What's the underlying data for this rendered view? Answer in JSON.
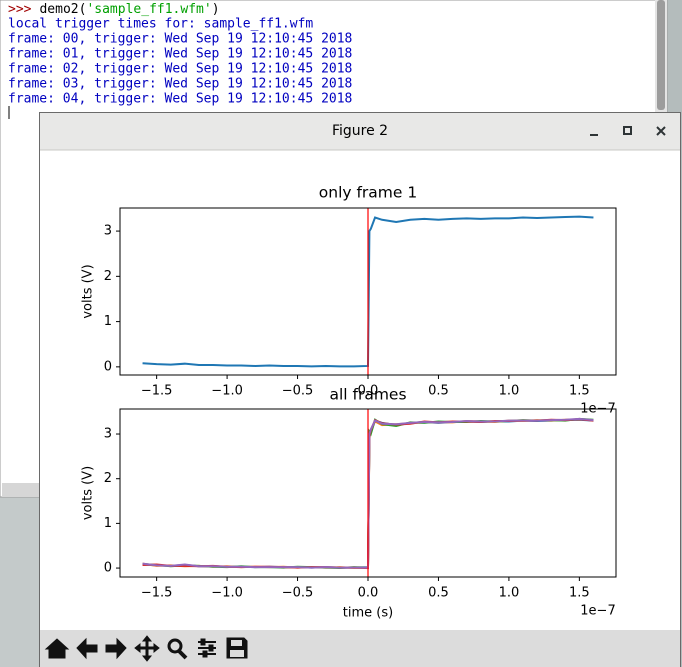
{
  "console": {
    "prompt": ">>>",
    "command": "demo2(",
    "argument": "'sample_ff1.wfm'",
    "close": ")",
    "output": [
      "local trigger times for: sample_ff1.wfm",
      "frame: 00, trigger: Wed Sep 19 12:10:45 2018",
      "frame: 01, trigger: Wed Sep 19 12:10:45 2018",
      "frame: 02, trigger: Wed Sep 19 12:10:45 2018",
      "frame: 03, trigger: Wed Sep 19 12:10:45 2018",
      "frame: 04, trigger: Wed Sep 19 12:10:45 2018"
    ]
  },
  "window": {
    "title": "Figure 2"
  },
  "chart_data": [
    {
      "type": "line",
      "title": "only frame 1",
      "ylabel": "volts (V)",
      "x_offset_label": "1e−7",
      "x": [
        -1.6,
        -1.5,
        -1.4,
        -1.3,
        -1.2,
        -1.1,
        -1.0,
        -0.9,
        -0.8,
        -0.7,
        -0.6,
        -0.5,
        -0.4,
        -0.3,
        -0.2,
        -0.1,
        0.0,
        0.01,
        0.02,
        0.05,
        0.1,
        0.2,
        0.3,
        0.4,
        0.5,
        0.6,
        0.7,
        0.8,
        0.9,
        1.0,
        1.1,
        1.2,
        1.3,
        1.4,
        1.5,
        1.6
      ],
      "series": [
        {
          "color": "#1f77b4",
          "values": [
            0.08,
            0.06,
            0.05,
            0.07,
            0.04,
            0.04,
            0.03,
            0.03,
            0.02,
            0.03,
            0.02,
            0.02,
            0.01,
            0.02,
            0.01,
            0.01,
            0.02,
            3.0,
            3.05,
            3.3,
            3.25,
            3.2,
            3.25,
            3.27,
            3.25,
            3.27,
            3.28,
            3.27,
            3.28,
            3.28,
            3.3,
            3.29,
            3.3,
            3.31,
            3.32,
            3.3
          ]
        }
      ],
      "axvline": 0,
      "axvline_color": "#ff0000",
      "xlim": [
        -1.76,
        1.76
      ],
      "ylim": [
        -0.18,
        3.51
      ],
      "xticks": [
        {
          "value": -1.5,
          "label": "−1.5"
        },
        {
          "value": -1.0,
          "label": "−1.0"
        },
        {
          "value": -0.5,
          "label": "−0.5"
        },
        {
          "value": 0,
          "label": "0.0"
        },
        0.5,
        {
          "value": 1.0,
          "label": "1.0"
        },
        1.5
      ],
      "yticks": [
        0,
        1,
        2,
        3
      ]
    },
    {
      "type": "line",
      "title": "all frames",
      "xlabel": "time (s)",
      "ylabel": "volts (V)",
      "x_offset_label": "1e−7",
      "x": [
        -1.6,
        -1.5,
        -1.4,
        -1.3,
        -1.2,
        -1.1,
        -1.0,
        -0.9,
        -0.8,
        -0.7,
        -0.6,
        -0.5,
        -0.4,
        -0.3,
        -0.2,
        -0.1,
        0.0,
        0.01,
        0.02,
        0.05,
        0.1,
        0.2,
        0.3,
        0.4,
        0.5,
        0.6,
        0.7,
        0.8,
        0.9,
        1.0,
        1.1,
        1.2,
        1.3,
        1.4,
        1.5,
        1.6
      ],
      "series": [
        {
          "color": "#1f77b4",
          "values": [
            0.08,
            0.06,
            0.05,
            0.07,
            0.04,
            0.04,
            0.03,
            0.03,
            0.02,
            0.03,
            0.02,
            0.02,
            0.01,
            0.02,
            0.01,
            0.01,
            0.02,
            3.0,
            3.05,
            3.3,
            3.25,
            3.2,
            3.25,
            3.27,
            3.25,
            3.27,
            3.28,
            3.27,
            3.28,
            3.28,
            3.3,
            3.29,
            3.3,
            3.31,
            3.32,
            3.3
          ]
        },
        {
          "color": "#ff7f0e",
          "values": [
            0.1,
            0.05,
            0.06,
            0.04,
            0.05,
            0.03,
            0.04,
            0.02,
            0.03,
            0.02,
            0.03,
            0.01,
            0.02,
            0.01,
            0.02,
            0.0,
            0.01,
            2.9,
            3.1,
            3.28,
            3.2,
            3.22,
            3.24,
            3.26,
            3.27,
            3.26,
            3.29,
            3.28,
            3.27,
            3.3,
            3.29,
            3.31,
            3.3,
            3.32,
            3.33,
            3.31
          ]
        },
        {
          "color": "#2ca02c",
          "values": [
            0.09,
            0.07,
            0.04,
            0.06,
            0.05,
            0.03,
            0.02,
            0.04,
            0.02,
            0.02,
            0.01,
            0.03,
            0.02,
            0.01,
            0.0,
            0.02,
            0.01,
            3.05,
            3.0,
            3.32,
            3.22,
            3.18,
            3.26,
            3.25,
            3.28,
            3.27,
            3.27,
            3.29,
            3.28,
            3.29,
            3.31,
            3.3,
            3.31,
            3.3,
            3.34,
            3.32
          ]
        },
        {
          "color": "#d62728",
          "values": [
            0.07,
            0.08,
            0.05,
            0.05,
            0.04,
            0.05,
            0.03,
            0.02,
            0.03,
            0.03,
            0.02,
            0.01,
            0.02,
            0.02,
            0.01,
            0.01,
            0.0,
            2.95,
            3.08,
            3.31,
            3.24,
            3.21,
            3.23,
            3.28,
            3.26,
            3.28,
            3.28,
            3.27,
            3.29,
            3.29,
            3.3,
            3.3,
            3.32,
            3.31,
            3.33,
            3.3
          ]
        },
        {
          "color": "#9467bd",
          "values": [
            0.1,
            0.06,
            0.05,
            0.08,
            0.04,
            0.04,
            0.03,
            0.03,
            0.02,
            0.02,
            0.02,
            0.02,
            0.01,
            0.02,
            0.01,
            0.01,
            0.01,
            3.0,
            3.1,
            3.3,
            3.23,
            3.22,
            3.25,
            3.27,
            3.26,
            3.27,
            3.29,
            3.28,
            3.28,
            3.3,
            3.3,
            3.3,
            3.31,
            3.32,
            3.34,
            3.31
          ]
        }
      ],
      "axvline": 0,
      "axvline_color": "#ff0000",
      "xlim": [
        -1.76,
        1.76
      ],
      "ylim": [
        -0.2,
        3.56
      ],
      "xticks": [
        {
          "value": -1.5,
          "label": "−1.5"
        },
        {
          "value": -1.0,
          "label": "−1.0"
        },
        {
          "value": -0.5,
          "label": "−0.5"
        },
        {
          "value": 0,
          "label": "0.0"
        },
        0.5,
        {
          "value": 1.0,
          "label": "1.0"
        },
        1.5
      ],
      "yticks": [
        0,
        1,
        2,
        3
      ]
    }
  ]
}
